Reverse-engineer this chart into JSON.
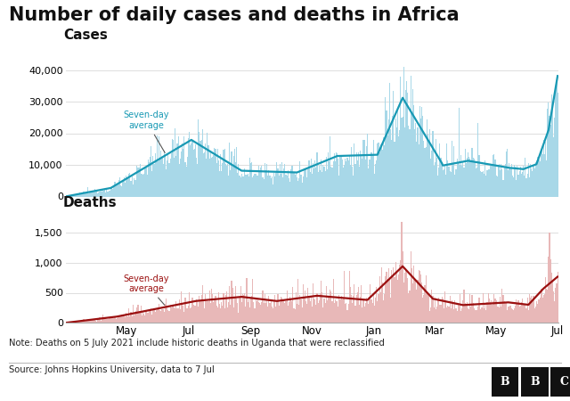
{
  "title": "Number of daily cases and deaths in Africa",
  "title_fontsize": 15,
  "cases_label": "Cases",
  "deaths_label": "Deaths",
  "cases_avg_label": "Seven-day\naverage",
  "deaths_avg_label": "Seven-day\naverage",
  "cases_bar_color": "#a8d8e8",
  "cases_line_color": "#1899b4",
  "deaths_bar_color": "#e8b8b8",
  "deaths_line_color": "#9b1010",
  "cases_ylim": [
    0,
    45000
  ],
  "deaths_ylim": [
    0,
    1700
  ],
  "cases_yticks": [
    0,
    10000,
    20000,
    30000,
    40000
  ],
  "deaths_yticks": [
    0,
    500,
    1000,
    1500
  ],
  "note_text": "Note: Deaths on 5 July 2021 include historic deaths in Uganda that were reclassified",
  "source_text": "Source: Johns Hopkins University, data to 7 Jul",
  "bbc_text": "BBC",
  "x_tick_labels": [
    "May",
    "Jul",
    "Sep",
    "Nov",
    "Jan",
    "Mar",
    "May",
    "Jul"
  ],
  "background_color": "#ffffff",
  "grid_color": "#dddddd",
  "label_color": "#111111",
  "annotation_color": "#555555"
}
